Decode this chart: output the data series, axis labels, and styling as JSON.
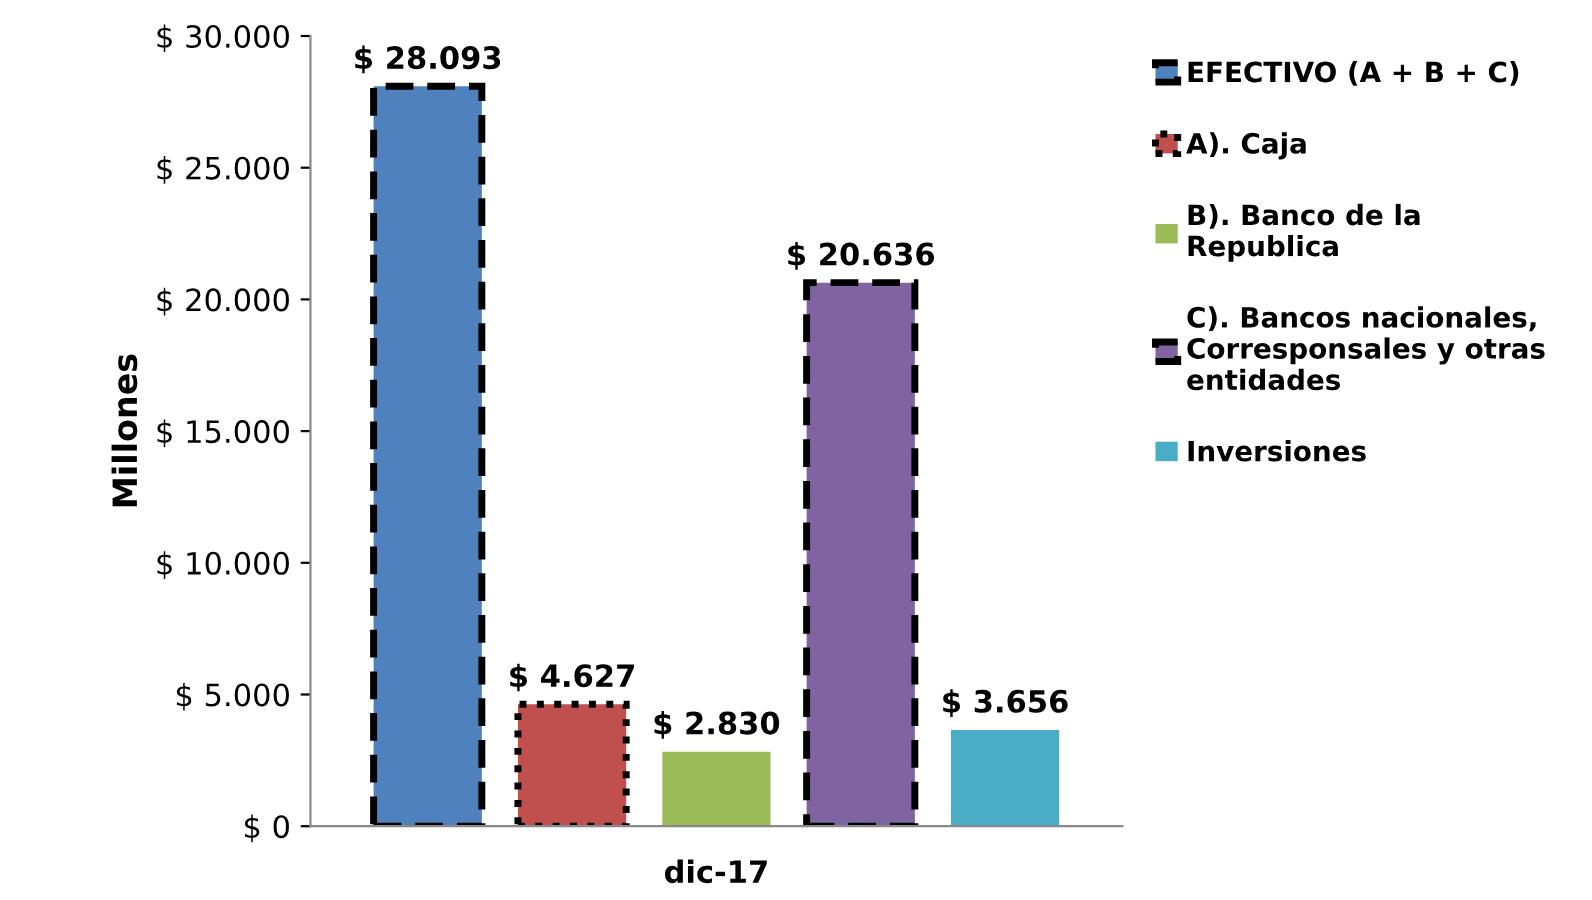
{
  "chart_data": {
    "type": "bar",
    "ylabel": "Millones",
    "categories": [
      "dic-17"
    ],
    "series": [
      {
        "name": "EFECTIVO (A + B + C)",
        "color": "#4f81bd",
        "values": [
          28093
        ],
        "value_labels": [
          "$ 28.093"
        ],
        "line_style": "dashed"
      },
      {
        "name": "A). Caja",
        "color": "#c0504d",
        "values": [
          4627
        ],
        "value_labels": [
          "$ 4.627"
        ],
        "line_style": "dotted"
      },
      {
        "name": "B). Banco de la\nRepublica",
        "color": "#9bbb59",
        "values": [
          2830
        ],
        "value_labels": [
          "$ 2.830"
        ]
      },
      {
        "name": "C). Bancos nacionales,\nCorresponsales y otras\nentidades",
        "color": "#8064a2",
        "values": [
          20636
        ],
        "value_labels": [
          "$ 20.636"
        ],
        "line_style": "dashed"
      },
      {
        "name": "Inversiones",
        "color": "#4bacc6",
        "values": [
          3656
        ],
        "value_labels": [
          "$ 3.656"
        ]
      }
    ],
    "ylim": [
      0,
      30000
    ],
    "yticks": [
      {
        "value": 0,
        "label": "$ 0"
      },
      {
        "value": 5000,
        "label": "$ 5.000"
      },
      {
        "value": 10000,
        "label": "$ 10.000"
      },
      {
        "value": 15000,
        "label": "$ 15.000"
      },
      {
        "value": 20000,
        "label": "$ 20.000"
      },
      {
        "value": 25000,
        "label": "$ 25.000"
      },
      {
        "value": 30000,
        "label": "$ 30.000"
      }
    ],
    "grid": false,
    "legend": "right"
  }
}
